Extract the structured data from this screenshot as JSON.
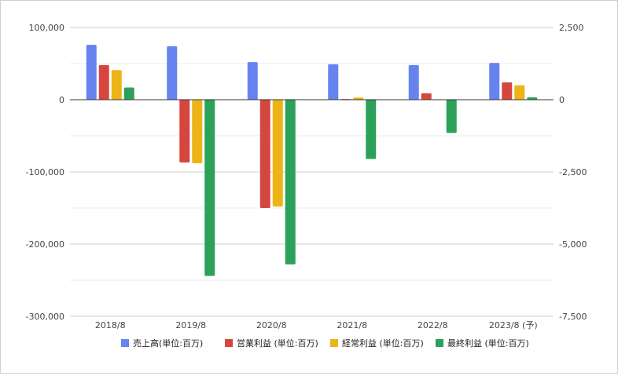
{
  "chart_data": {
    "type": "bar",
    "categories": [
      "2018/8",
      "2019/8",
      "2020/8",
      "2021/8",
      "2022/8",
      "2023/8 (予)"
    ],
    "y_left": {
      "range": [
        -300000,
        100000
      ],
      "ticks": [
        "100,000",
        "0",
        "-100,000",
        "-200,000",
        "-300,000"
      ]
    },
    "y_right": {
      "range": [
        -7500,
        2500
      ],
      "ticks": [
        "2,500",
        "0",
        "-2,500",
        "-5,000",
        "-7,500"
      ]
    },
    "grid": true,
    "legend_position": "bottom",
    "series": [
      {
        "name": "売上高(単位:百万)",
        "color": "#6783F0",
        "axis": "left",
        "values": [
          76000,
          74000,
          52000,
          49000,
          48000,
          51000
        ]
      },
      {
        "name": "営業利益 (単位:百万)",
        "color": "#D5473E",
        "axis": "left",
        "values": [
          48000,
          -87000,
          -150000,
          1000,
          9000,
          24000
        ]
      },
      {
        "name": "経常利益 (単位:百万)",
        "color": "#EDB417",
        "axis": "left",
        "values": [
          41000,
          -88000,
          -148000,
          3000,
          0,
          20000
        ]
      },
      {
        "name": "最終利益 (単位:百万)",
        "color": "#2BA15A",
        "axis": "right",
        "values": [
          420,
          -6100,
          -5700,
          -2050,
          -1150,
          80
        ]
      }
    ]
  }
}
